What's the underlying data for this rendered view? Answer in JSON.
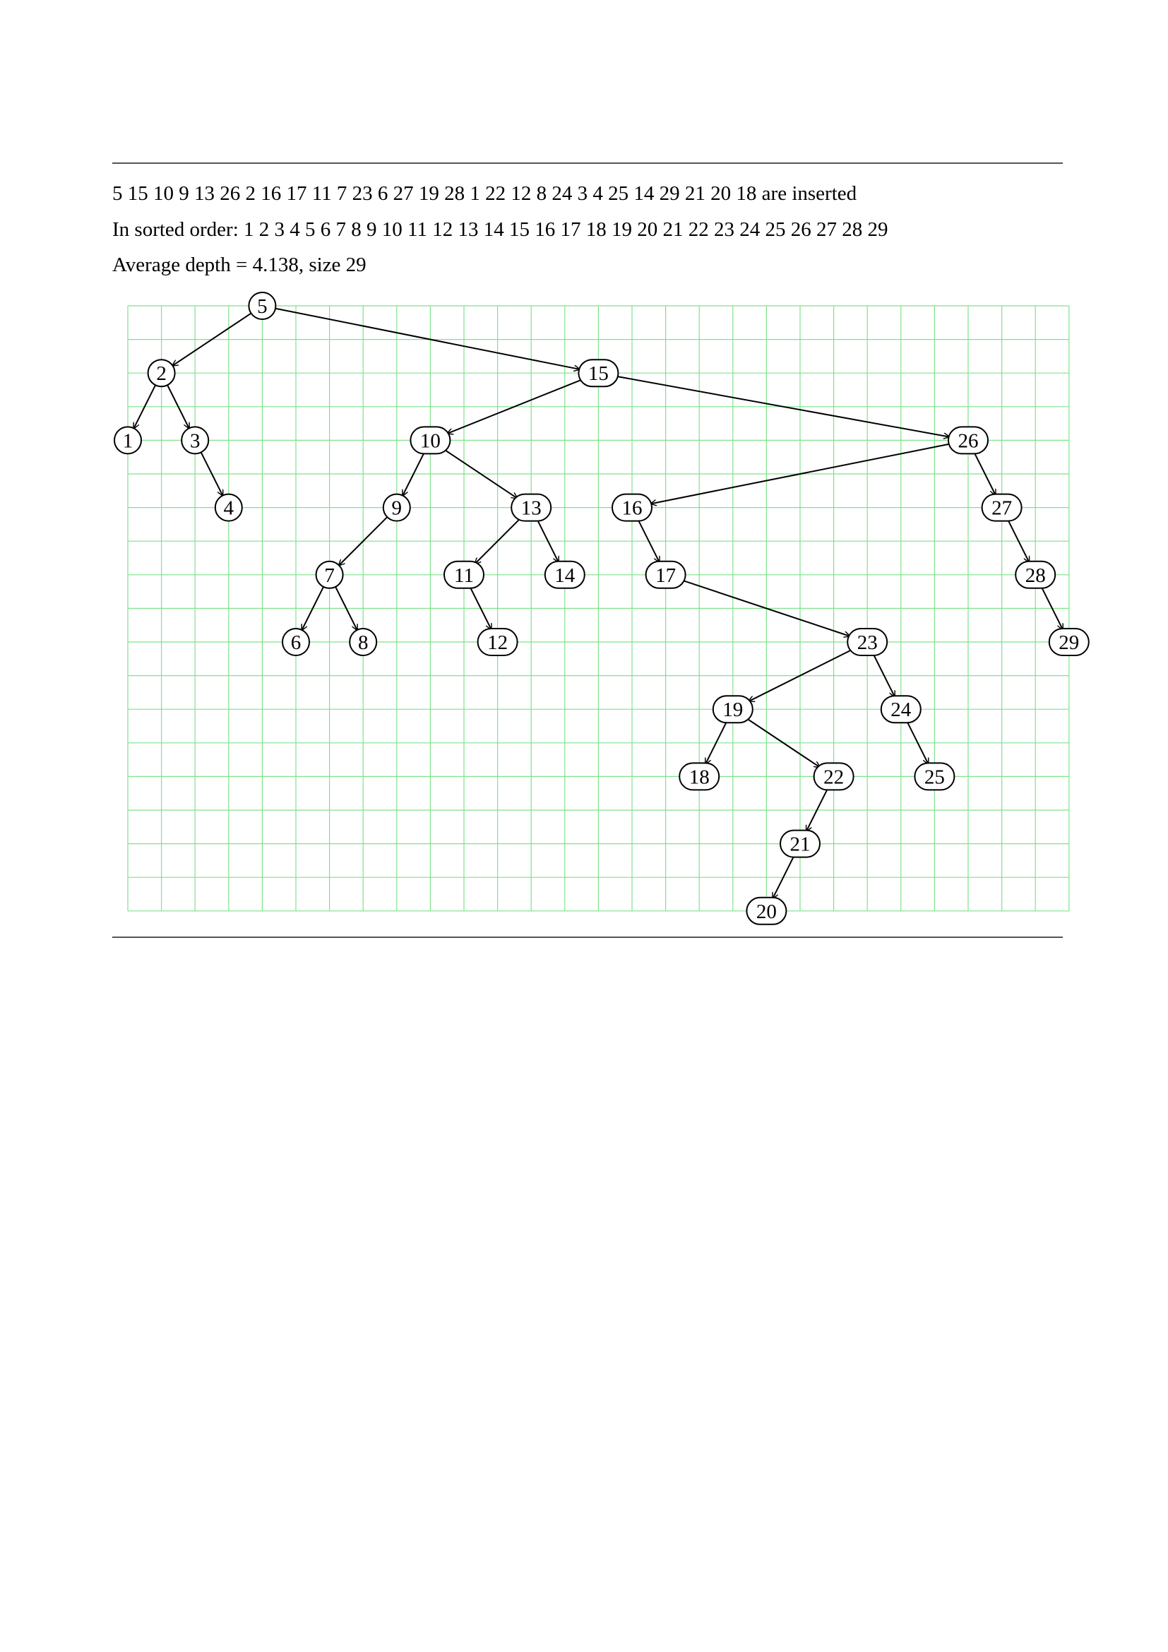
{
  "header": {
    "inserted_line": "5 15 10 9 13 26 2 16 17 11 7 23 6 27 19 28 1 22 12 8 24 3 4 25 14 29 21 20 18 are inserted",
    "sorted_line": "In sorted order: 1 2 3 4 5 6 7 8 9 10 11 12 13 14 15 16 17 18 19 20 21 22 23 24 25 26 27 28 29",
    "stats_line": "Average depth = 4.138, size 29"
  },
  "tree": {
    "colors": {
      "grid": "#7fe28b",
      "edge": "#000000",
      "node_fill": "#ffffff",
      "node_stroke": "#000000",
      "rule": "#555555"
    },
    "grid": {
      "columns": 28,
      "rows": 18
    },
    "root": "5",
    "nodes": [
      {
        "label": "5",
        "depth": 0
      },
      {
        "label": "2",
        "depth": 1
      },
      {
        "label": "15",
        "depth": 1
      },
      {
        "label": "1",
        "depth": 2
      },
      {
        "label": "3",
        "depth": 2
      },
      {
        "label": "10",
        "depth": 2
      },
      {
        "label": "26",
        "depth": 2
      },
      {
        "label": "4",
        "depth": 3
      },
      {
        "label": "9",
        "depth": 3
      },
      {
        "label": "13",
        "depth": 3
      },
      {
        "label": "16",
        "depth": 3
      },
      {
        "label": "27",
        "depth": 3
      },
      {
        "label": "7",
        "depth": 4
      },
      {
        "label": "11",
        "depth": 4
      },
      {
        "label": "14",
        "depth": 4
      },
      {
        "label": "17",
        "depth": 4
      },
      {
        "label": "28",
        "depth": 4
      },
      {
        "label": "6",
        "depth": 5
      },
      {
        "label": "8",
        "depth": 5
      },
      {
        "label": "12",
        "depth": 5
      },
      {
        "label": "23",
        "depth": 5
      },
      {
        "label": "29",
        "depth": 5
      },
      {
        "label": "19",
        "depth": 6
      },
      {
        "label": "24",
        "depth": 6
      },
      {
        "label": "18",
        "depth": 7
      },
      {
        "label": "22",
        "depth": 7
      },
      {
        "label": "25",
        "depth": 7
      },
      {
        "label": "21",
        "depth": 8
      },
      {
        "label": "20",
        "depth": 9
      }
    ],
    "edges": [
      [
        "5",
        "2"
      ],
      [
        "5",
        "15"
      ],
      [
        "2",
        "1"
      ],
      [
        "2",
        "3"
      ],
      [
        "3",
        "4"
      ],
      [
        "15",
        "10"
      ],
      [
        "15",
        "26"
      ],
      [
        "10",
        "9"
      ],
      [
        "10",
        "13"
      ],
      [
        "9",
        "7"
      ],
      [
        "7",
        "6"
      ],
      [
        "7",
        "8"
      ],
      [
        "13",
        "11"
      ],
      [
        "13",
        "14"
      ],
      [
        "11",
        "12"
      ],
      [
        "26",
        "16"
      ],
      [
        "26",
        "27"
      ],
      [
        "16",
        "17"
      ],
      [
        "17",
        "23"
      ],
      [
        "23",
        "19"
      ],
      [
        "23",
        "24"
      ],
      [
        "19",
        "18"
      ],
      [
        "19",
        "22"
      ],
      [
        "22",
        "21"
      ],
      [
        "21",
        "20"
      ],
      [
        "24",
        "25"
      ],
      [
        "27",
        "28"
      ],
      [
        "28",
        "29"
      ]
    ]
  }
}
